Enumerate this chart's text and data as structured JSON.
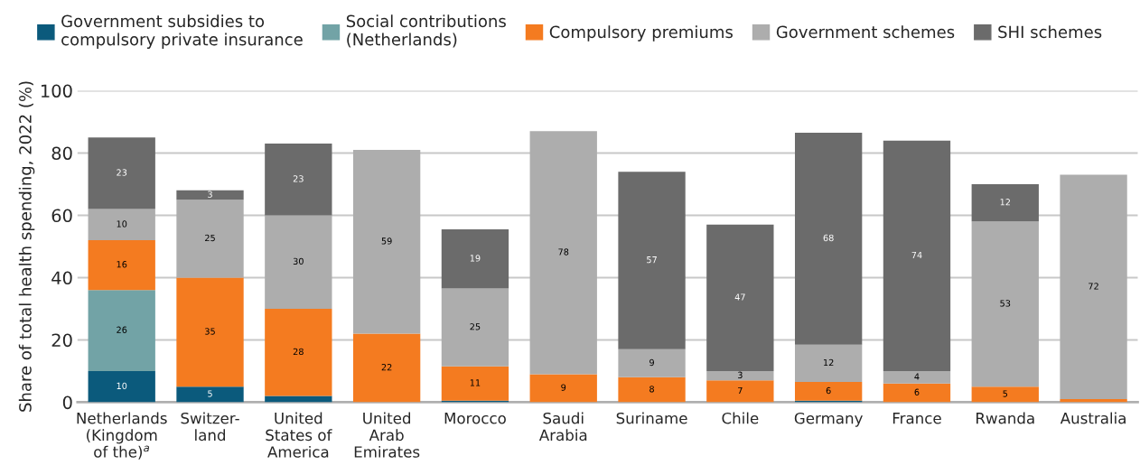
{
  "chart_data": {
    "type": "bar",
    "stacked": true,
    "ylabel": "Share of total health spending, 2022 (%)",
    "categories": [
      "Netherlands\n(Kingdom\nof the)$^{a}$",
      "Switzer-\nland",
      "United\nStates of\nAmerica",
      "United\nArab\nEmirates",
      "Morocco",
      "Saudi\nArabia",
      "Suriname",
      "Chile",
      "Germany",
      "France",
      "Rwanda",
      "Australia"
    ],
    "series": [
      {
        "name": "Government subsidies to\ncompulsory private insurance",
        "color": "#0b5a7c",
        "values": [
          10,
          5,
          2,
          0,
          0.5,
          0,
          0,
          0,
          0.5,
          0,
          0,
          0
        ],
        "value_labels": [
          "10",
          "5",
          null,
          null,
          null,
          null,
          null,
          null,
          null,
          null,
          null,
          null
        ]
      },
      {
        "name": "Social contributions\n(Netherlands)",
        "color": "#72a3a6",
        "values": [
          26,
          0,
          0,
          0,
          0,
          0,
          0,
          0,
          0,
          0,
          0,
          0
        ],
        "value_labels": [
          "26",
          null,
          null,
          null,
          null,
          null,
          null,
          null,
          null,
          null,
          null,
          null
        ]
      },
      {
        "name": "Compulsory premiums",
        "color": "#f47b20",
        "values": [
          16,
          35,
          28,
          22,
          11,
          9,
          8,
          7,
          6,
          6,
          5,
          1
        ],
        "value_labels": [
          "16",
          "35",
          "28",
          "22",
          "11",
          "9",
          "8",
          "7",
          "6",
          "6",
          "5",
          null
        ]
      },
      {
        "name": "Government schemes",
        "color": "#adadad",
        "values": [
          10,
          25,
          30,
          59,
          25,
          78,
          9,
          3,
          12,
          4,
          53,
          72
        ],
        "value_labels": [
          "10",
          "25",
          "30",
          "59",
          "25",
          "78",
          "9",
          "3",
          "12",
          "4",
          "53",
          "72"
        ]
      },
      {
        "name": "SHI schemes",
        "color": "#6b6b6b",
        "values": [
          23,
          3,
          23,
          0,
          19,
          0,
          57,
          47,
          68,
          74,
          12,
          0
        ],
        "value_labels": [
          "23",
          "3",
          "23",
          null,
          "19",
          null,
          "57",
          "47",
          "68",
          "74",
          "12",
          null
        ]
      }
    ],
    "ylim": [
      0,
      100
    ],
    "yticks": [
      0,
      20,
      40,
      60,
      80,
      100
    ],
    "grid": "y",
    "legend": "top"
  }
}
